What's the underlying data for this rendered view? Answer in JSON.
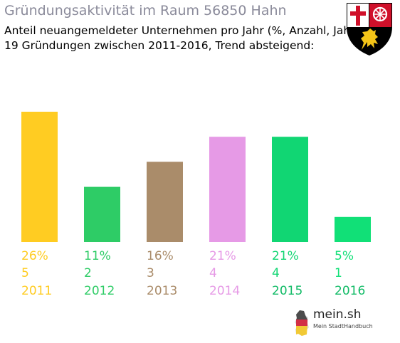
{
  "header": {
    "title": "Gründungsaktivität im Raum 56850 Hahn",
    "subtitle_line1": "Anteil neuangemeldeter Unternehmen pro Jahr (%, Anzahl, Jahr)",
    "subtitle_line2": "19 Gründungen zwischen 2011-2016, Trend absteigend:"
  },
  "crest": {
    "icon": "rheinland-pfalz-coat-of-arms-icon"
  },
  "logo": {
    "name": "mein.sh",
    "tagline": "Mein StadtHandbuch",
    "icon": "germany-map-icon"
  },
  "chart_data": {
    "type": "bar",
    "categories": [
      "2011",
      "2012",
      "2013",
      "2014",
      "2015",
      "2016"
    ],
    "values": [
      26,
      11,
      16,
      21,
      21,
      5
    ],
    "percent_labels": [
      "26%",
      "11%",
      "16%",
      "21%",
      "21%",
      "5%"
    ],
    "count_labels": [
      "5",
      "2",
      "3",
      "4",
      "4",
      "1"
    ],
    "colors": [
      "#ffcc22",
      "#2ecc66",
      "#aa8c6a",
      "#e69ae6",
      "#11d673",
      "#11e077"
    ],
    "label_colors": [
      "#ffcc22",
      "#2ecc66",
      "#aa8c6a",
      "#e69ae6",
      "#11d673",
      "#11e077"
    ],
    "year_label_colors": [
      "#ffcc22",
      "#2ecc66",
      "#aa8c6a",
      "#e69ae6",
      "#11bb66",
      "#11bb66"
    ],
    "ylim": [
      0,
      26
    ],
    "grid": false
  }
}
